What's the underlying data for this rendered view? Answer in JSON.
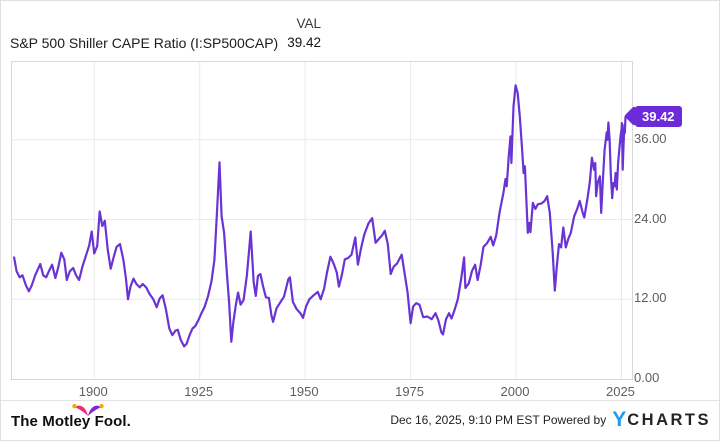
{
  "header": {
    "title": "S&P 500 Shiller CAPE Ratio (I:SP500CAP)",
    "val_label": "VAL",
    "val_value": "39.42"
  },
  "badge": {
    "label": "39.42",
    "color": "#6c2bd9"
  },
  "footer": {
    "brand": "The Motley Fool.",
    "timestamp": "Dec 16, 2025, 9:10 PM EST",
    "powered_by": "Powered by",
    "ycharts_y": "Y",
    "ycharts_rest": "CHARTS",
    "hat_pink": "#ed2a7b",
    "hat_purple": "#8126db",
    "hat_ball": "#f7a800",
    "ycharts_blue": "#1e9bef"
  },
  "chart_data": {
    "type": "line",
    "title": "S&P 500 Shiller CAPE Ratio",
    "series_name": "S&P 500 Shiller CAPE Ratio (I:SP500CAP)",
    "current_value": 39.42,
    "line_color": "#6a34d4",
    "grid_color": "#eaeaea",
    "grid": true,
    "legend": "none",
    "x_ticks": [
      1900,
      1925,
      1950,
      1975,
      2000,
      2025
    ],
    "x_tick_labels": [
      "1900",
      "1925",
      "1950",
      "1975",
      "2000",
      "2025"
    ],
    "y_ticks": [
      0,
      12,
      24,
      36
    ],
    "y_tick_labels": [
      "0.00",
      "12.00",
      "24.00",
      "36.00"
    ],
    "x_range": [
      1880.5,
      2027.5
    ],
    "y_range": [
      0,
      47.7
    ],
    "points": [
      [
        1881.0,
        18.3
      ],
      [
        1881.6,
        16.2
      ],
      [
        1882.3,
        15.3
      ],
      [
        1883.0,
        15.6
      ],
      [
        1883.8,
        14.1
      ],
      [
        1884.5,
        13.2
      ],
      [
        1885.2,
        14.1
      ],
      [
        1886.0,
        15.6
      ],
      [
        1887.2,
        17.3
      ],
      [
        1887.9,
        15.6
      ],
      [
        1888.6,
        15.3
      ],
      [
        1889.3,
        16.3
      ],
      [
        1890.0,
        17.2
      ],
      [
        1890.8,
        15.2
      ],
      [
        1891.5,
        16.9
      ],
      [
        1892.2,
        19.0
      ],
      [
        1892.9,
        18.0
      ],
      [
        1893.5,
        14.9
      ],
      [
        1894.2,
        16.2
      ],
      [
        1895.0,
        16.7
      ],
      [
        1895.7,
        15.6
      ],
      [
        1896.4,
        14.9
      ],
      [
        1897.2,
        16.9
      ],
      [
        1898.0,
        18.5
      ],
      [
        1898.8,
        20.1
      ],
      [
        1899.4,
        22.2
      ],
      [
        1900.0,
        18.9
      ],
      [
        1900.7,
        20.0
      ],
      [
        1901.3,
        25.2
      ],
      [
        1901.9,
        23.0
      ],
      [
        1902.5,
        23.8
      ],
      [
        1903.2,
        19.5
      ],
      [
        1903.9,
        16.6
      ],
      [
        1904.6,
        18.3
      ],
      [
        1905.3,
        19.9
      ],
      [
        1906.1,
        20.3
      ],
      [
        1906.9,
        18.0
      ],
      [
        1907.5,
        15.2
      ],
      [
        1908.0,
        12.0
      ],
      [
        1908.6,
        13.9
      ],
      [
        1909.3,
        15.1
      ],
      [
        1910.0,
        14.3
      ],
      [
        1910.8,
        13.8
      ],
      [
        1911.5,
        14.3
      ],
      [
        1912.3,
        13.8
      ],
      [
        1913.1,
        12.8
      ],
      [
        1914.0,
        12.0
      ],
      [
        1914.8,
        10.8
      ],
      [
        1915.5,
        12.1
      ],
      [
        1916.2,
        12.6
      ],
      [
        1917.0,
        10.5
      ],
      [
        1917.8,
        7.6
      ],
      [
        1918.5,
        6.6
      ],
      [
        1919.3,
        7.3
      ],
      [
        1919.8,
        7.4
      ],
      [
        1920.5,
        5.9
      ],
      [
        1921.3,
        4.9
      ],
      [
        1921.9,
        5.3
      ],
      [
        1922.6,
        6.6
      ],
      [
        1923.3,
        7.6
      ],
      [
        1924.0,
        8.0
      ],
      [
        1924.8,
        9.0
      ],
      [
        1925.5,
        10.0
      ],
      [
        1926.2,
        10.9
      ],
      [
        1927.0,
        12.5
      ],
      [
        1927.8,
        14.7
      ],
      [
        1928.5,
        17.9
      ],
      [
        1929.0,
        24.0
      ],
      [
        1929.7,
        32.6
      ],
      [
        1930.2,
        24.5
      ],
      [
        1930.8,
        22.0
      ],
      [
        1931.5,
        15.5
      ],
      [
        1932.0,
        11.3
      ],
      [
        1932.5,
        5.6
      ],
      [
        1933.0,
        8.6
      ],
      [
        1933.6,
        11.3
      ],
      [
        1934.1,
        13.0
      ],
      [
        1934.7,
        11.2
      ],
      [
        1935.4,
        11.9
      ],
      [
        1936.2,
        15.6
      ],
      [
        1937.1,
        22.2
      ],
      [
        1937.8,
        14.5
      ],
      [
        1938.3,
        12.5
      ],
      [
        1938.8,
        15.5
      ],
      [
        1939.4,
        15.8
      ],
      [
        1940.0,
        14.0
      ],
      [
        1940.7,
        12.3
      ],
      [
        1941.4,
        12.2
      ],
      [
        1942.0,
        9.6
      ],
      [
        1942.4,
        8.6
      ],
      [
        1943.2,
        10.6
      ],
      [
        1944.0,
        11.4
      ],
      [
        1945.0,
        12.4
      ],
      [
        1946.0,
        15.0
      ],
      [
        1946.4,
        15.3
      ],
      [
        1947.1,
        11.6
      ],
      [
        1948.0,
        10.5
      ],
      [
        1949.0,
        9.8
      ],
      [
        1949.5,
        9.2
      ],
      [
        1950.2,
        10.9
      ],
      [
        1951.0,
        12.0
      ],
      [
        1952.0,
        12.6
      ],
      [
        1953.0,
        13.1
      ],
      [
        1953.7,
        12.0
      ],
      [
        1954.5,
        13.6
      ],
      [
        1955.2,
        16.1
      ],
      [
        1956.0,
        18.4
      ],
      [
        1956.8,
        17.3
      ],
      [
        1957.5,
        16.0
      ],
      [
        1958.0,
        13.9
      ],
      [
        1958.7,
        15.6
      ],
      [
        1959.4,
        18.0
      ],
      [
        1960.2,
        18.2
      ],
      [
        1961.0,
        18.7
      ],
      [
        1961.9,
        21.3
      ],
      [
        1962.5,
        17.2
      ],
      [
        1963.2,
        19.5
      ],
      [
        1964.0,
        21.7
      ],
      [
        1965.0,
        23.4
      ],
      [
        1965.9,
        24.2
      ],
      [
        1966.7,
        20.5
      ],
      [
        1967.4,
        21.0
      ],
      [
        1968.2,
        21.6
      ],
      [
        1968.9,
        22.3
      ],
      [
        1969.6,
        20.3
      ],
      [
        1970.3,
        15.8
      ],
      [
        1971.0,
        16.9
      ],
      [
        1971.8,
        17.4
      ],
      [
        1972.9,
        18.7
      ],
      [
        1973.6,
        15.8
      ],
      [
        1974.3,
        13.0
      ],
      [
        1975.0,
        8.4
      ],
      [
        1975.6,
        10.9
      ],
      [
        1976.3,
        11.4
      ],
      [
        1977.1,
        11.2
      ],
      [
        1978.0,
        9.3
      ],
      [
        1979.0,
        9.4
      ],
      [
        1980.0,
        9.0
      ],
      [
        1980.9,
        9.9
      ],
      [
        1981.6,
        8.8
      ],
      [
        1982.3,
        7.0
      ],
      [
        1982.7,
        6.7
      ],
      [
        1983.4,
        9.0
      ],
      [
        1984.1,
        9.9
      ],
      [
        1984.7,
        9.1
      ],
      [
        1985.4,
        10.3
      ],
      [
        1986.2,
        12.0
      ],
      [
        1987.0,
        15.1
      ],
      [
        1987.7,
        18.3
      ],
      [
        1988.0,
        13.7
      ],
      [
        1988.8,
        14.4
      ],
      [
        1989.6,
        16.3
      ],
      [
        1990.3,
        17.2
      ],
      [
        1990.9,
        14.9
      ],
      [
        1991.6,
        17.1
      ],
      [
        1992.3,
        19.9
      ],
      [
        1993.1,
        20.4
      ],
      [
        1994.0,
        21.4
      ],
      [
        1994.6,
        20.1
      ],
      [
        1995.3,
        21.6
      ],
      [
        1996.1,
        25.1
      ],
      [
        1997.0,
        28.0
      ],
      [
        1997.5,
        30.1
      ],
      [
        1997.8,
        29.0
      ],
      [
        1998.3,
        33.6
      ],
      [
        1998.7,
        36.5
      ],
      [
        1998.9,
        32.5
      ],
      [
        1999.4,
        41.0
      ],
      [
        1999.9,
        44.2
      ],
      [
        2000.4,
        43.0
      ],
      [
        2000.9,
        39.5
      ],
      [
        2001.4,
        35.0
      ],
      [
        2001.8,
        31.0
      ],
      [
        2002.1,
        32.0
      ],
      [
        2002.8,
        22.0
      ],
      [
        2003.1,
        23.5
      ],
      [
        2003.4,
        22.1
      ],
      [
        2004.0,
        26.5
      ],
      [
        2004.6,
        25.6
      ],
      [
        2005.2,
        26.3
      ],
      [
        2006.0,
        26.4
      ],
      [
        2006.8,
        26.8
      ],
      [
        2007.4,
        27.5
      ],
      [
        2008.0,
        25.0
      ],
      [
        2008.7,
        19.0
      ],
      [
        2009.2,
        13.3
      ],
      [
        2009.7,
        17.1
      ],
      [
        2010.2,
        20.3
      ],
      [
        2010.7,
        19.8
      ],
      [
        2011.2,
        22.8
      ],
      [
        2011.8,
        19.8
      ],
      [
        2012.4,
        21.1
      ],
      [
        2013.0,
        22.0
      ],
      [
        2013.8,
        24.5
      ],
      [
        2014.5,
        25.6
      ],
      [
        2015.1,
        26.8
      ],
      [
        2015.8,
        25.0
      ],
      [
        2016.2,
        24.3
      ],
      [
        2016.9,
        27.0
      ],
      [
        2017.5,
        29.6
      ],
      [
        2018.0,
        33.3
      ],
      [
        2018.5,
        31.5
      ],
      [
        2018.8,
        32.5
      ],
      [
        2019.0,
        27.5
      ],
      [
        2019.4,
        29.6
      ],
      [
        2019.9,
        30.5
      ],
      [
        2020.2,
        25.0
      ],
      [
        2020.6,
        30.0
      ],
      [
        2021.0,
        34.5
      ],
      [
        2021.5,
        37.1
      ],
      [
        2021.7,
        36.0
      ],
      [
        2021.9,
        38.6
      ],
      [
        2022.2,
        36.0
      ],
      [
        2022.5,
        30.5
      ],
      [
        2022.8,
        27.2
      ],
      [
        2023.1,
        29.5
      ],
      [
        2023.4,
        29.0
      ],
      [
        2023.6,
        31.0
      ],
      [
        2023.9,
        28.5
      ],
      [
        2024.2,
        32.5
      ],
      [
        2024.5,
        34.5
      ],
      [
        2024.8,
        36.6
      ],
      [
        2025.0,
        37.5
      ],
      [
        2025.1,
        38.5
      ],
      [
        2025.3,
        31.5
      ],
      [
        2025.5,
        35.5
      ],
      [
        2025.7,
        38.2
      ],
      [
        2025.8,
        37.0
      ],
      [
        2025.96,
        39.42
      ]
    ]
  }
}
